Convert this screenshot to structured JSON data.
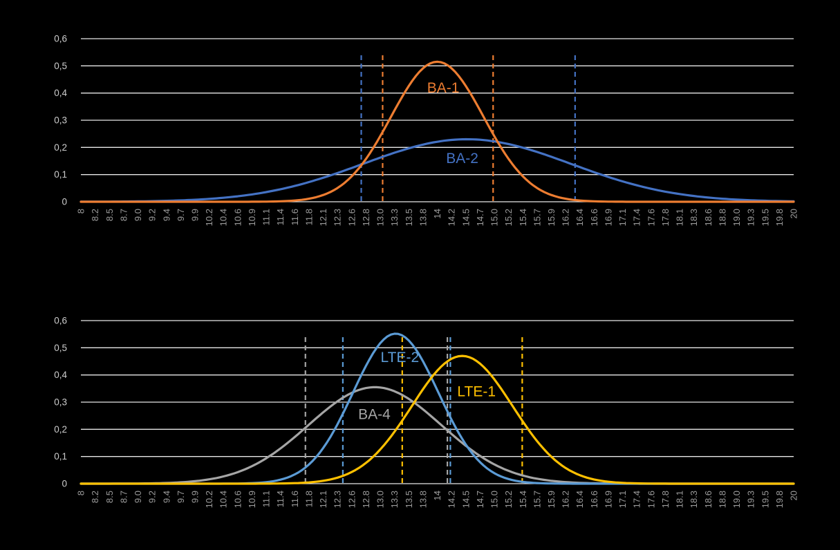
{
  "figure": {
    "background": "#000000",
    "grid_color": "#E8E8E8",
    "y_tick_color": "#CDCDCD",
    "x_tick_color": "#9C9C9C"
  },
  "chart_data": [
    {
      "id": "top",
      "type": "line",
      "title": "",
      "xlabel": "",
      "ylabel": "",
      "grid": "horizontal",
      "legend": "inline-labels",
      "ylim": [
        0,
        0.6
      ],
      "x_value_range": [
        8,
        20
      ],
      "y_ticks": [
        "0",
        "0,1",
        "0,2",
        "0,3",
        "0,4",
        "0,5",
        "0,6"
      ],
      "x_categories": [
        "8",
        "8.2",
        "8.5",
        "8.7",
        "9.0",
        "9.2",
        "9.4",
        "9.7",
        "9.9",
        "10.2",
        "10.4",
        "10.6",
        "10.9",
        "11.1",
        "11.4",
        "11.6",
        "11.8",
        "12.1",
        "12.3",
        "12.6",
        "12.8",
        "13.0",
        "13.3",
        "13.5",
        "13.8",
        "14",
        "14.2",
        "14.5",
        "14.7",
        "15.0",
        "15.2",
        "15.4",
        "15.7",
        "15.9",
        "16.2",
        "16.4",
        "16.6",
        "16.9",
        "17.1",
        "17.4",
        "17.6",
        "17.8",
        "18.1",
        "18.3",
        "18.6",
        "18.8",
        "19.0",
        "19.3",
        "19.5",
        "19.8",
        "20"
      ],
      "series": [
        {
          "name": "BA-2",
          "color": "#4472C4",
          "curve": "gaussian",
          "mean": 14.5,
          "sigma": 1.75,
          "peak": 0.23,
          "label": {
            "text": "BA-2",
            "x": 14.42,
            "y": 0.16
          }
        },
        {
          "name": "BA-1",
          "color": "#ED7D31",
          "curve": "gaussian",
          "mean": 14.0,
          "sigma": 0.78,
          "peak": 0.515,
          "label": {
            "text": "BA-1",
            "x": 14.1,
            "y": 0.42
          }
        }
      ],
      "dashed_vlines": [
        {
          "series": "BA-2",
          "color": "#4472C4",
          "x": 12.72
        },
        {
          "series": "BA-1",
          "color": "#ED7D31",
          "x": 13.08
        },
        {
          "series": "BA-1",
          "color": "#ED7D31",
          "x": 14.94
        },
        {
          "series": "BA-2",
          "color": "#4472C4",
          "x": 16.32
        }
      ],
      "vline_top": 0.54
    },
    {
      "id": "bottom",
      "type": "line",
      "title": "",
      "xlabel": "",
      "ylabel": "",
      "grid": "horizontal",
      "legend": "inline-labels",
      "ylim": [
        0,
        0.6
      ],
      "x_value_range": [
        8,
        20
      ],
      "y_ticks": [
        "0",
        "0,1",
        "0,2",
        "0,3",
        "0,4",
        "0,5",
        "0,6"
      ],
      "x_categories": [
        "8",
        "8.2",
        "8.5",
        "8.7",
        "9.0",
        "9.2",
        "9.4",
        "9.7",
        "9.9",
        "10.2",
        "10.4",
        "10.6",
        "10.9",
        "11.1",
        "11.4",
        "11.6",
        "11.8",
        "12.1",
        "12.3",
        "12.6",
        "12.8",
        "13.0",
        "13.3",
        "13.5",
        "13.8",
        "14",
        "14.2",
        "14.5",
        "14.7",
        "15.0",
        "15.2",
        "15.4",
        "15.7",
        "15.9",
        "16.2",
        "16.4",
        "16.6",
        "16.9",
        "17.1",
        "17.4",
        "17.6",
        "17.8",
        "18.1",
        "18.3",
        "18.6",
        "18.8",
        "19.0",
        "19.3",
        "19.5",
        "19.8",
        "20"
      ],
      "series": [
        {
          "name": "BA-4",
          "color": "#A5A5A5",
          "curve": "gaussian",
          "mean": 12.95,
          "sigma": 1.12,
          "peak": 0.355,
          "label": {
            "text": "BA-4",
            "x": 12.94,
            "y": 0.255
          }
        },
        {
          "name": "LTE-2",
          "color": "#5B9BD5",
          "curve": "gaussian",
          "mean": 13.3,
          "sigma": 0.72,
          "peak": 0.552,
          "label": {
            "text": "LTE-2",
            "x": 13.37,
            "y": 0.465
          }
        },
        {
          "name": "LTE-1",
          "color": "#FFC000",
          "curve": "gaussian",
          "mean": 14.42,
          "sigma": 0.85,
          "peak": 0.47,
          "label": {
            "text": "LTE-1",
            "x": 14.66,
            "y": 0.34
          }
        }
      ],
      "dashed_vlines": [
        {
          "series": "BA-4",
          "color": "#A5A5A5",
          "x": 11.78
        },
        {
          "series": "LTE-2",
          "color": "#5B9BD5",
          "x": 12.41
        },
        {
          "series": "LTE-1",
          "color": "#FFC000",
          "x": 13.41
        },
        {
          "series": "BA-4",
          "color": "#A5A5A5",
          "x": 14.17
        },
        {
          "series": "LTE-2",
          "color": "#5B9BD5",
          "x": 14.22
        },
        {
          "series": "LTE-1",
          "color": "#FFC000",
          "x": 15.43
        }
      ],
      "vline_top": 0.54
    }
  ]
}
